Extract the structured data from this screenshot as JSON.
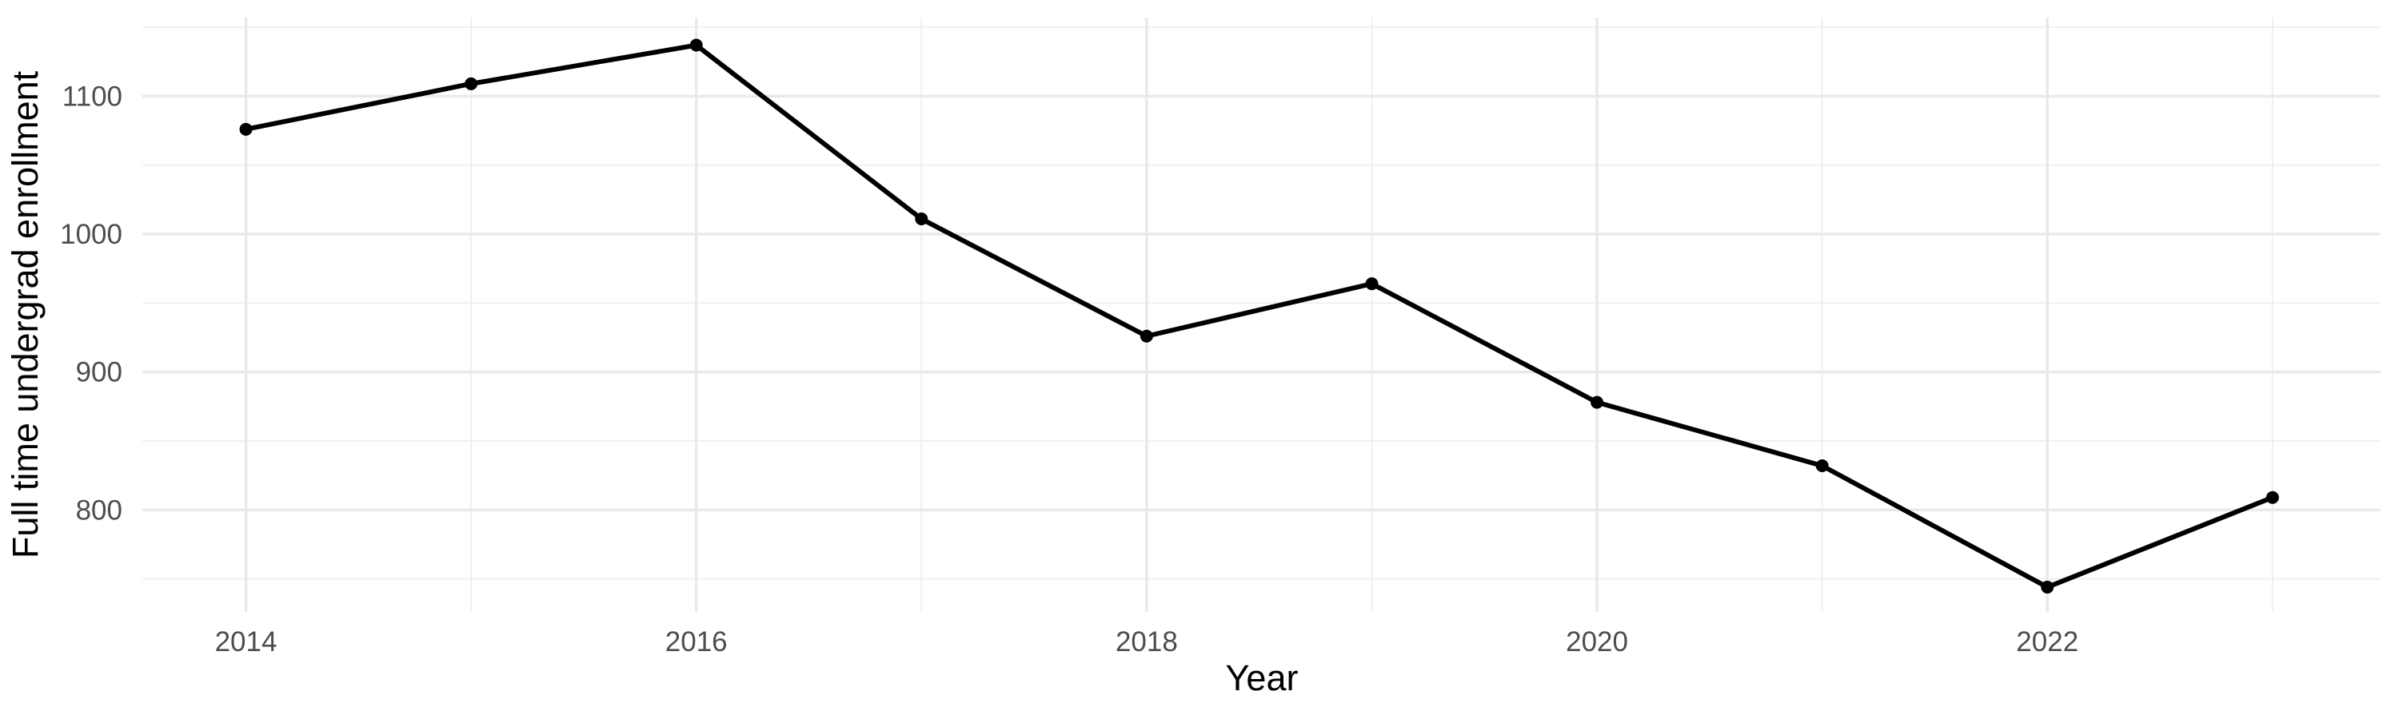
{
  "chart_data": {
    "type": "line",
    "title": "",
    "xlabel": "Year",
    "ylabel": "Full time undergrad enrollment",
    "series": [
      {
        "name": "Full time undergrad enrollment",
        "x": [
          2014,
          2015,
          2016,
          2017,
          2018,
          2019,
          2020,
          2021,
          2022,
          2023
        ],
        "values": [
          1076,
          1109,
          1137,
          1011,
          926,
          964,
          878,
          832,
          744,
          809
        ]
      }
    ],
    "x_ticks_major": [
      2014,
      2016,
      2018,
      2020,
      2022
    ],
    "x_ticks_minor": [
      2015,
      2017,
      2019,
      2021,
      2023
    ],
    "y_ticks_major": [
      800,
      900,
      1000,
      1100
    ],
    "y_ticks_minor": [
      750,
      850,
      950,
      1050,
      1150
    ],
    "xlim": [
      2013.54,
      2023.48
    ],
    "ylim": [
      726,
      1157
    ],
    "grid": true,
    "legend": "none",
    "colors": {
      "line": "#000000",
      "point": "#000000",
      "grid_major": "#e9e9e9",
      "grid_minor": "#f0f0f0",
      "tick_label": "#4d4d4d",
      "axis_title": "#000000",
      "background": "#ffffff"
    }
  }
}
